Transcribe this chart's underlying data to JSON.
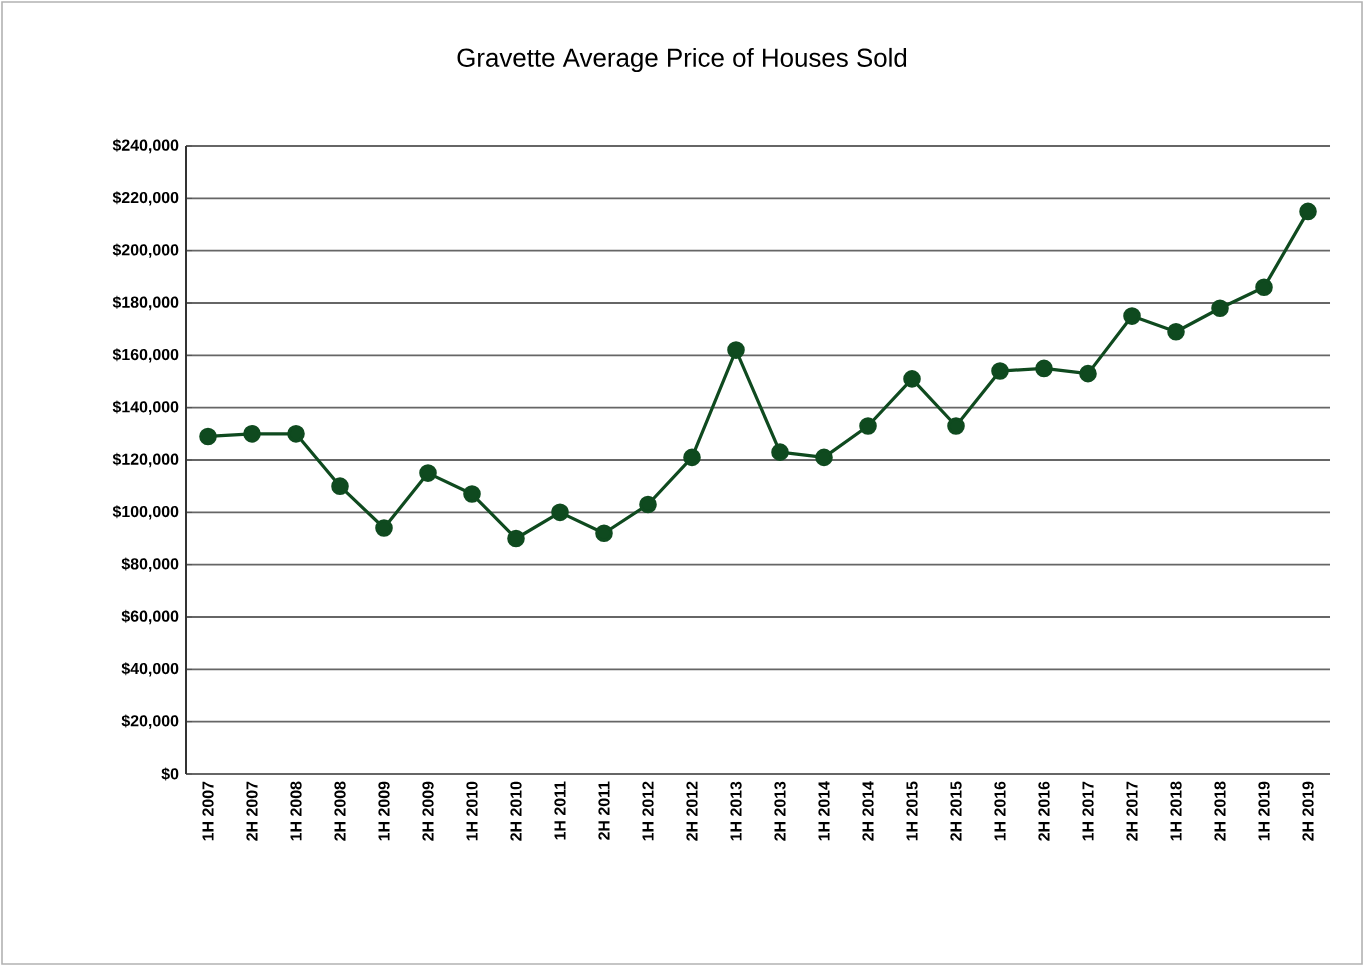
{
  "chart_data": {
    "type": "line",
    "title": "Gravette Average Price of Houses Sold",
    "categories": [
      "1H 2007",
      "2H 2007",
      "1H 2008",
      "2H 2008",
      "1H 2009",
      "2H 2009",
      "1H 2010",
      "2H 2010",
      "1H 2011",
      "2H 2011",
      "1H 2012",
      "2H 2012",
      "1H 2013",
      "2H 2013",
      "1H 2014",
      "2H 2014",
      "1H 2015",
      "2H 2015",
      "1H 2016",
      "2H 2016",
      "1H 2017",
      "2H 2017",
      "1H 2018",
      "2H 2018",
      "1H 2019",
      "2H 2019"
    ],
    "series": [
      {
        "color": "#0f4a1f",
        "values": [
          129000,
          130000,
          130000,
          110000,
          94000,
          115000,
          107000,
          90000,
          100000,
          92000,
          103000,
          121000,
          162000,
          123000,
          121000,
          133000,
          151000,
          133000,
          154000,
          155000,
          153000,
          175000,
          169000,
          178000,
          186000,
          215000
        ]
      }
    ],
    "ylim": [
      0,
      240000
    ],
    "yticks": [
      {
        "value": 0,
        "label": "$0"
      },
      {
        "value": 20000,
        "label": "$20,000"
      },
      {
        "value": 40000,
        "label": "$40,000"
      },
      {
        "value": 60000,
        "label": "$60,000"
      },
      {
        "value": 80000,
        "label": "$80,000"
      },
      {
        "value": 100000,
        "label": "$100,000"
      },
      {
        "value": 120000,
        "label": "$120,000"
      },
      {
        "value": 140000,
        "label": "$140,000"
      },
      {
        "value": 160000,
        "label": "$160,000"
      },
      {
        "value": 180000,
        "label": "$180,000"
      },
      {
        "value": 200000,
        "label": "$200,000"
      },
      {
        "value": 220000,
        "label": "$220,000"
      },
      {
        "value": 240000,
        "label": "$240,000"
      }
    ],
    "grid": "y",
    "marker": "circle",
    "line_style": "solid"
  }
}
